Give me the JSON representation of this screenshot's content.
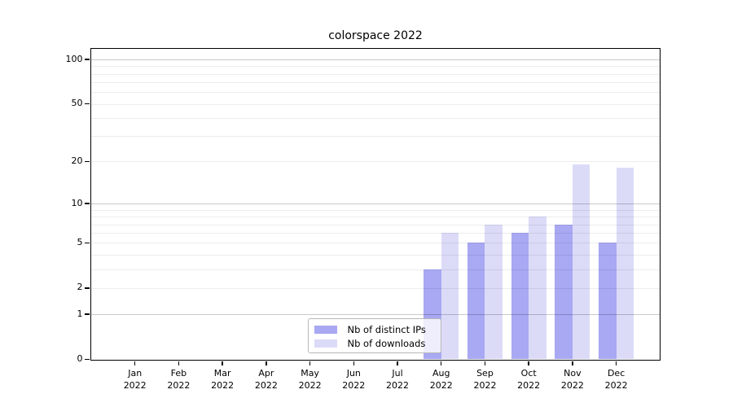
{
  "chart_data": {
    "type": "bar",
    "title": "colorspace 2022",
    "categories": [
      "Jan 2022",
      "Feb 2022",
      "Mar 2022",
      "Apr 2022",
      "May 2022",
      "Jun 2022",
      "Jul 2022",
      "Aug 2022",
      "Sep 2022",
      "Oct 2022",
      "Nov 2022",
      "Dec 2022"
    ],
    "series": [
      {
        "name": "Nb of distinct IPs",
        "color": "#a8a8f3",
        "values": [
          0,
          0,
          0,
          0,
          0,
          0,
          0,
          3,
          5,
          6,
          7,
          5
        ]
      },
      {
        "name": "Nb of downloads",
        "color": "#dbdbf8",
        "values": [
          0,
          0,
          0,
          0,
          0,
          0,
          0,
          6,
          7,
          8,
          19,
          18
        ]
      }
    ],
    "y_axis": {
      "scale": "log10(value+1)",
      "tick_labels": [
        100,
        50,
        20,
        10,
        5,
        2,
        1,
        0
      ],
      "range": [
        0,
        118
      ]
    },
    "grid": {
      "minor_lines": [
        2,
        3,
        4,
        5,
        6,
        7,
        8,
        9,
        20,
        30,
        40,
        50,
        60,
        70,
        80,
        90
      ],
      "major_lines": [
        1,
        10,
        100
      ],
      "on": true
    },
    "legend": {
      "position": "bottom-center",
      "frame_alpha": 0.8
    }
  }
}
